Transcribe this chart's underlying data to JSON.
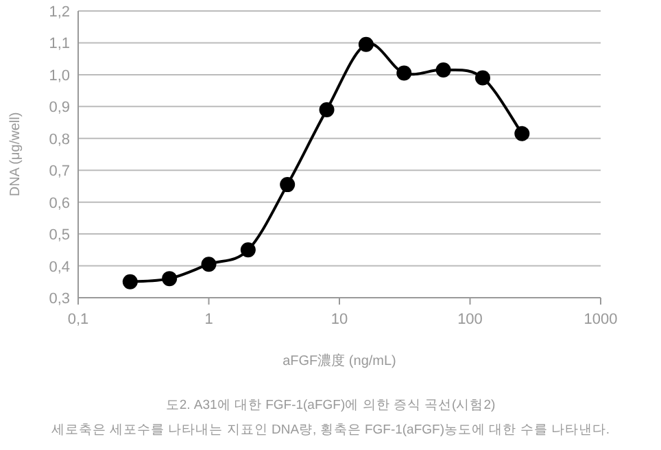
{
  "chart_data": {
    "type": "line",
    "xlabel": "aFGF濃度 (ng/mL)",
    "ylabel": "DNA (μg/well)",
    "x": [
      0.25,
      0.5,
      1,
      2,
      4,
      8,
      16,
      31.25,
      62.5,
      125,
      250
    ],
    "series": [
      {
        "color": "#000000",
        "values": [
          0.35,
          0.36,
          0.405,
          0.45,
          0.655,
          0.89,
          1.095,
          1.005,
          1.015,
          0.99,
          0.815
        ]
      }
    ],
    "log": "x",
    "marker": "circle",
    "line_style": "solid",
    "grid": "y",
    "xlim": [
      0.1,
      1000
    ],
    "xticks": [
      {
        "value": 0.1,
        "label": "0,1"
      },
      1,
      10,
      100,
      1000
    ],
    "ylim": [
      0.3,
      1.2
    ],
    "yticks": [
      {
        "value": 0.3,
        "label": "0,3"
      },
      {
        "value": 0.4,
        "label": "0,4"
      },
      {
        "value": 0.5,
        "label": "0,5"
      },
      {
        "value": 0.6,
        "label": "0,6"
      },
      {
        "value": 0.7,
        "label": "0,7"
      },
      {
        "value": 0.8,
        "label": "0,8"
      },
      {
        "value": 0.9,
        "label": "0,9"
      },
      {
        "value": 1.0,
        "label": "1,0"
      },
      {
        "value": 1.1,
        "label": "1,1"
      },
      {
        "value": 1.2,
        "label": "1,2"
      }
    ],
    "annotations": [
      "도2. A31에 대한 FGF-1(aFGF)에 의한 증식 곡선(시험2)",
      "세로축은 세포수를 나타내는 지표인 DNA량, 횡축은 FGF-1(aFGF)농도에 대한 수를 나타낸다."
    ]
  }
}
